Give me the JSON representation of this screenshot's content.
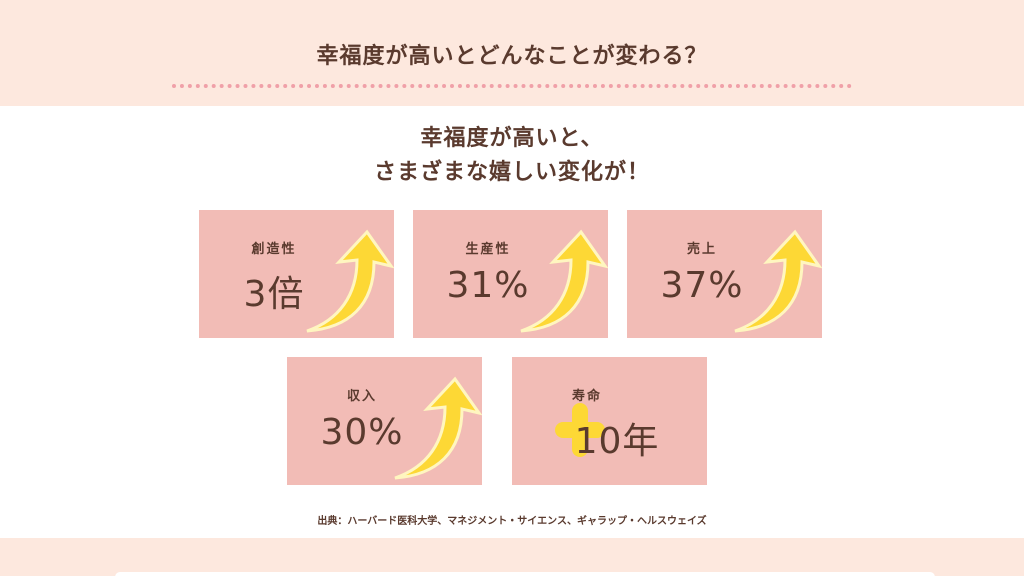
{
  "header": {
    "title": "幸福度が高いとどんなことが変わる？"
  },
  "subtitle": {
    "line1": "幸福度が高いと、",
    "line2": "さまざまな嬉しい変化が！"
  },
  "cards": [
    {
      "label": "創造性",
      "value": "3倍",
      "icon": "arrow-up-icon"
    },
    {
      "label": "生産性",
      "value": "31%",
      "icon": "arrow-up-icon"
    },
    {
      "label": "売上",
      "value": "37%",
      "icon": "arrow-up-icon"
    },
    {
      "label": "収入",
      "value": "30%",
      "icon": "arrow-up-icon"
    },
    {
      "label": "寿命",
      "value": "10年",
      "icon": "plus-icon"
    }
  ],
  "source": "出典：ハーバード医科大学、マネジメント・サイエンス、ギャラップ・ヘルスウェイズ",
  "colors": {
    "header_bg": "#fde8de",
    "card_bg": "#f2bcb6",
    "accent": "#fdd835",
    "text": "#5a3a2e"
  }
}
